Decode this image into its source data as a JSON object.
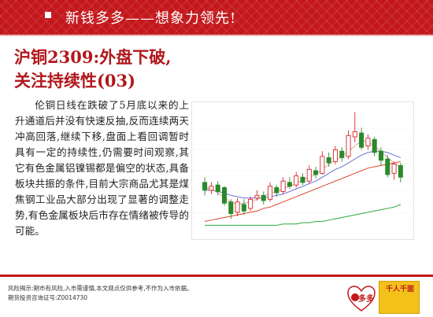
{
  "header": {
    "slogan": "新钱多多——想象力领先!"
  },
  "article": {
    "title_line1": "沪铜2309:外盘下破,",
    "title_line2": "关注持续性(03)",
    "body": "伦铜日线在跌破了5月底以来的上升通道后并没有快速反抽,反而连续两天冲高回落,继续下移,盘面上看回调暂时具有一定的持续性,仍需要时间观察,其它有色金属铝镍锡都是偏空的状态,具备板块共振的条件,目前大宗商品尤其是煤焦钢工业品大部分出现了显著的调整走势,有色金属板块后市存在情绪被传导的可能。"
  },
  "chart_data": {
    "type": "candlestick",
    "colors": {
      "up": "#d9262b",
      "down": "#2a8a2a",
      "ma_short": "#e3a1a1",
      "ma_mid": "#6a6fd8",
      "ma_long": "#d94a2b",
      "ma_longest": "#2fa83a"
    },
    "candles": [
      [
        44.2,
        43.6,
        44.6,
        43.2
      ],
      [
        43.6,
        43.9,
        44.2,
        43.3
      ],
      [
        44.0,
        43.5,
        44.3,
        43.2
      ],
      [
        43.8,
        42.6,
        43.9,
        42.4
      ],
      [
        42.7,
        41.8,
        42.9,
        41.4
      ],
      [
        41.9,
        42.7,
        43.0,
        41.6
      ],
      [
        42.5,
        42.0,
        42.9,
        41.7
      ],
      [
        42.2,
        42.9,
        43.1,
        42.0
      ],
      [
        43.0,
        43.2,
        43.6,
        42.8
      ],
      [
        43.2,
        42.8,
        43.5,
        42.5
      ],
      [
        42.9,
        43.9,
        44.2,
        42.7
      ],
      [
        43.8,
        43.4,
        44.0,
        43.1
      ],
      [
        43.5,
        44.3,
        44.6,
        43.3
      ],
      [
        44.2,
        43.9,
        44.6,
        43.7
      ],
      [
        44.0,
        44.7,
        45.0,
        43.8
      ],
      [
        44.6,
        44.2,
        44.9,
        44.0
      ],
      [
        44.3,
        45.2,
        45.5,
        44.1
      ],
      [
        45.1,
        44.8,
        45.4,
        44.5
      ],
      [
        44.9,
        46.2,
        46.6,
        44.8
      ],
      [
        46.1,
        45.7,
        46.5,
        45.4
      ],
      [
        45.8,
        46.7,
        47.0,
        45.6
      ],
      [
        46.6,
        46.1,
        46.9,
        45.8
      ],
      [
        46.2,
        47.8,
        48.2,
        46.0
      ],
      [
        47.7,
        48.1,
        49.6,
        47.3
      ],
      [
        48.0,
        46.9,
        48.4,
        46.7
      ],
      [
        47.0,
        47.6,
        47.9,
        46.7
      ],
      [
        47.5,
        46.5,
        47.7,
        46.2
      ],
      [
        46.6,
        45.9,
        46.9,
        45.5
      ],
      [
        46.0,
        44.8,
        46.3,
        44.6
      ],
      [
        44.9,
        45.6,
        45.8,
        44.4
      ],
      [
        45.5,
        44.6,
        45.7,
        44.2
      ]
    ],
    "ma_short": [
      43.8,
      43.7,
      43.4,
      43.0,
      42.7,
      42.5,
      42.6,
      42.7,
      42.9,
      43.1,
      43.4,
      43.5,
      43.7,
      43.9,
      44.1,
      44.4,
      44.6,
      44.8,
      45.2,
      45.6,
      45.9,
      46.2,
      46.6,
      47.0,
      47.4,
      47.3,
      47.0,
      46.6,
      46.1,
      45.7,
      45.4
    ],
    "ma_mid": [
      43.6,
      43.6,
      43.5,
      43.4,
      43.2,
      43.1,
      43.0,
      43.0,
      43.0,
      43.0,
      43.1,
      43.2,
      43.3,
      43.5,
      43.7,
      43.9,
      44.1,
      44.3,
      44.6,
      44.9,
      45.2,
      45.4,
      45.7,
      46.0,
      46.3,
      46.5,
      46.6,
      46.6,
      46.5,
      46.3,
      46.1
    ],
    "ma_long": [
      41.2,
      41.3,
      41.4,
      41.5,
      41.6,
      41.7,
      41.8,
      41.9,
      42.0,
      42.2,
      42.3,
      42.5,
      42.7,
      42.9,
      43.1,
      43.3,
      43.5,
      43.7,
      43.9,
      44.1,
      44.3,
      44.5,
      44.7,
      44.9,
      45.1,
      45.3,
      45.4,
      45.5,
      45.6,
      45.7,
      45.8
    ],
    "ma_longest": [
      40.9,
      40.9,
      40.9,
      40.9,
      40.9,
      40.9,
      40.9,
      40.9,
      40.9,
      40.9,
      40.9,
      40.9,
      41.0,
      41.0,
      41.0,
      41.1,
      41.1,
      41.2,
      41.2,
      41.3,
      41.4,
      41.5,
      41.6,
      41.7,
      41.8,
      41.9,
      42.0,
      42.1,
      42.2,
      42.3,
      42.5
    ],
    "ylim": [
      40.2,
      50.0
    ]
  },
  "footer": {
    "risk_notice": "风险揭示:期市有风险,入市需谨慎,本文观点仅供参考,不作为入市依据。",
    "certificate": "期货投资咨询证号:Z0014730",
    "logo_qdd": "多多",
    "logo_right": "千人千面"
  }
}
